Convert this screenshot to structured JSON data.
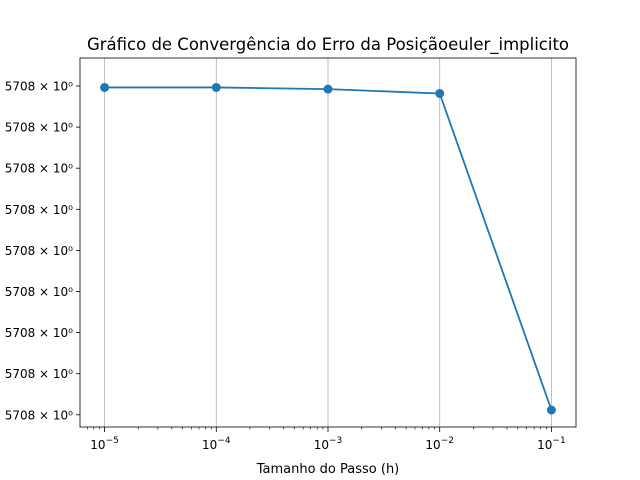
{
  "chart_data": {
    "type": "line",
    "title": "Gráfico de Convergência do Erro da Posiçãoeuler_implicito",
    "xlabel": "Tamanho do Passo (h)",
    "ylabel": "",
    "x_scale": "log",
    "y_scale": "log",
    "grid": "x-only",
    "x_tick_labels": [
      {
        "base": "10",
        "exp": "−5"
      },
      {
        "base": "10",
        "exp": "−4"
      },
      {
        "base": "10",
        "exp": "−3"
      },
      {
        "base": "10",
        "exp": "−2"
      },
      {
        "base": "10",
        "exp": "−1"
      }
    ],
    "x_tick_values": [
      1e-05,
      0.0001,
      0.001,
      0.01,
      0.1
    ],
    "y_tick_labels": [
      "5708 × 10⁰",
      "5708 × 10⁰",
      "5708 × 10⁰",
      "5708 × 10⁰",
      "5708 × 10⁰",
      "5708 × 10⁰",
      "5708 × 10⁰",
      "5708 × 10⁰",
      "5708 × 10⁰"
    ],
    "series": [
      {
        "color": "#1f77b4",
        "x": [
          1e-05,
          0.0001,
          0.001,
          0.01,
          0.1
        ],
        "y_relative": [
          0.96,
          0.96,
          0.955,
          0.942,
          0.0
        ]
      }
    ]
  }
}
